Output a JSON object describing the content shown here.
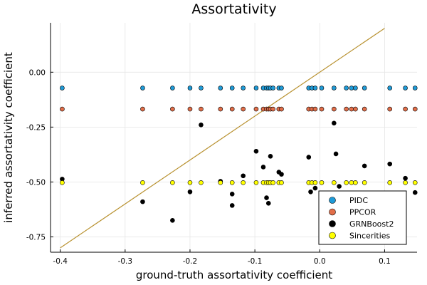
{
  "chart_data": {
    "type": "scatter",
    "title": "Assortativity",
    "xlabel": "ground-truth assortativity coefficient",
    "ylabel": "inferred assortativity coefficient",
    "xlim": [
      -0.415,
      0.15
    ],
    "ylim": [
      -0.82,
      0.225
    ],
    "xticks": [
      -0.4,
      -0.3,
      -0.2,
      -0.1,
      0.0,
      0.1
    ],
    "xtick_labels": [
      "-0.4",
      "-0.3",
      "-0.2",
      "-0.1",
      "0.0",
      "0.1"
    ],
    "yticks": [
      0.0,
      -0.25,
      -0.5,
      -0.75
    ],
    "ytick_labels": [
      "0.00",
      "-0.25",
      "-0.50",
      "-0.75"
    ],
    "grid": true,
    "legend_position": "bottom-right",
    "reference_line": {
      "color": "#b8912f",
      "points": [
        [
          -0.4,
          -0.8
        ],
        [
          0.1,
          0.2
        ]
      ]
    },
    "series": [
      {
        "name": "PIDC",
        "color": "#1f9bd8",
        "x": [
          -0.397,
          -0.273,
          -0.227,
          -0.2,
          -0.183,
          -0.153,
          -0.135,
          -0.118,
          -0.098,
          -0.087,
          -0.082,
          -0.079,
          -0.076,
          -0.072,
          -0.063,
          -0.059,
          -0.017,
          -0.012,
          -0.007,
          0.003,
          0.022,
          0.041,
          0.049,
          0.055,
          0.069,
          0.108,
          0.132,
          0.147
        ],
        "y": [
          -0.072,
          -0.072,
          -0.072,
          -0.072,
          -0.072,
          -0.072,
          -0.072,
          -0.072,
          -0.072,
          -0.072,
          -0.072,
          -0.072,
          -0.072,
          -0.072,
          -0.072,
          -0.072,
          -0.072,
          -0.072,
          -0.072,
          -0.072,
          -0.072,
          -0.072,
          -0.072,
          -0.072,
          -0.072,
          -0.072,
          -0.072,
          -0.072
        ]
      },
      {
        "name": "PPCOR",
        "color": "#e26e49",
        "x": [
          -0.397,
          -0.273,
          -0.227,
          -0.2,
          -0.183,
          -0.153,
          -0.135,
          -0.118,
          -0.098,
          -0.087,
          -0.082,
          -0.079,
          -0.076,
          -0.072,
          -0.063,
          -0.059,
          -0.017,
          -0.012,
          -0.007,
          0.003,
          0.022,
          0.041,
          0.049,
          0.055,
          0.069,
          0.108,
          0.132,
          0.147
        ],
        "y": [
          -0.168,
          -0.168,
          -0.168,
          -0.168,
          -0.168,
          -0.168,
          -0.168,
          -0.168,
          -0.168,
          -0.168,
          -0.168,
          -0.168,
          -0.168,
          -0.168,
          -0.168,
          -0.168,
          -0.168,
          -0.168,
          -0.168,
          -0.168,
          -0.168,
          -0.168,
          -0.168,
          -0.168,
          -0.168,
          -0.168,
          -0.168,
          -0.168
        ]
      },
      {
        "name": "GRNBoost2",
        "color": "#000000",
        "x": [
          -0.397,
          -0.273,
          -0.227,
          -0.2,
          -0.183,
          -0.153,
          -0.135,
          -0.135,
          -0.118,
          -0.098,
          -0.087,
          -0.082,
          -0.079,
          -0.076,
          -0.063,
          -0.059,
          -0.017,
          -0.014,
          -0.007,
          0.003,
          0.022,
          0.025,
          0.03,
          0.069,
          0.108,
          0.132,
          0.147
        ],
        "y": [
          -0.487,
          -0.59,
          -0.675,
          -0.545,
          -0.24,
          -0.497,
          -0.555,
          -0.607,
          -0.472,
          -0.36,
          -0.432,
          -0.572,
          -0.597,
          -0.383,
          -0.455,
          -0.465,
          -0.387,
          -0.545,
          -0.528,
          -0.6,
          -0.232,
          -0.372,
          -0.52,
          -0.427,
          -0.418,
          -0.483,
          -0.548
        ]
      },
      {
        "name": "Sincerities",
        "color": "#ffff00",
        "x": [
          -0.397,
          -0.273,
          -0.227,
          -0.2,
          -0.183,
          -0.153,
          -0.135,
          -0.118,
          -0.098,
          -0.087,
          -0.082,
          -0.079,
          -0.076,
          -0.072,
          -0.063,
          -0.059,
          -0.017,
          -0.012,
          -0.007,
          0.003,
          0.022,
          0.041,
          0.049,
          0.055,
          0.069,
          0.108,
          0.132,
          0.147
        ],
        "y": [
          -0.503,
          -0.503,
          -0.503,
          -0.503,
          -0.503,
          -0.503,
          -0.503,
          -0.503,
          -0.503,
          -0.503,
          -0.503,
          -0.503,
          -0.503,
          -0.503,
          -0.503,
          -0.503,
          -0.503,
          -0.503,
          -0.503,
          -0.503,
          -0.503,
          -0.503,
          -0.503,
          -0.503,
          -0.503,
          -0.503,
          -0.503,
          -0.503
        ]
      }
    ]
  }
}
